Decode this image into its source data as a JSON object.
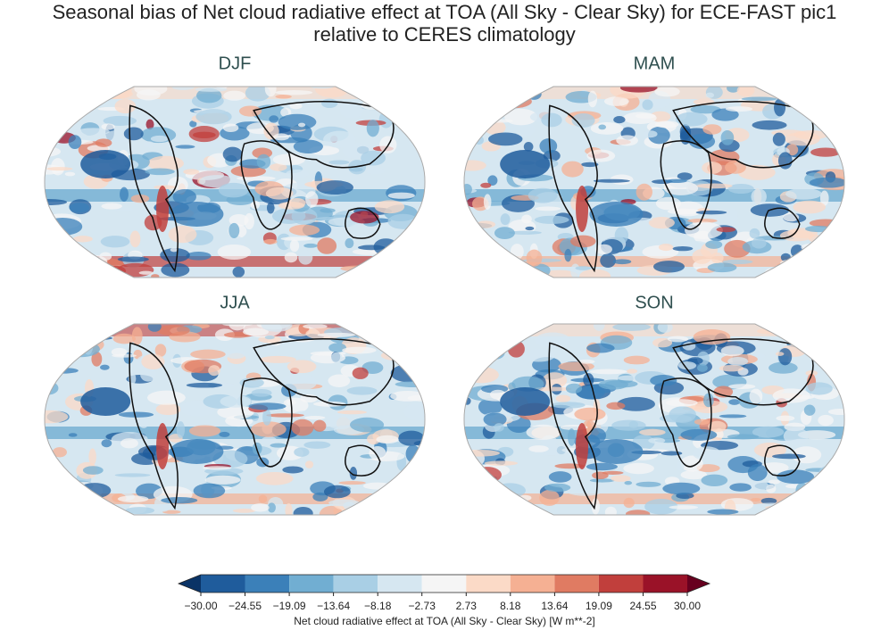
{
  "title": "Seasonal bias of Net cloud radiative effect at TOA (All Sky - Clear Sky) for ECE-FAST pic1",
  "subtitle": "relative to CERES climatology",
  "panels": [
    {
      "title": "DJF"
    },
    {
      "title": "MAM"
    },
    {
      "title": "JJA"
    },
    {
      "title": "SON"
    }
  ],
  "colorbar": {
    "label": "Net cloud radiative effect at TOA (All Sky - Clear Sky) [W m**-2]",
    "lim": [
      -30,
      30
    ],
    "ticks": [
      {
        "value": -30,
        "label": "−30.00"
      },
      {
        "value": -24.55,
        "label": "−24.55"
      },
      {
        "value": -19.09,
        "label": "−19.09"
      },
      {
        "value": -13.64,
        "label": "−13.64"
      },
      {
        "value": -8.18,
        "label": "−8.18"
      },
      {
        "value": -2.73,
        "label": "−2.73"
      },
      {
        "value": 2.73,
        "label": "2.73"
      },
      {
        "value": 8.18,
        "label": "8.18"
      },
      {
        "value": 13.64,
        "label": "13.64"
      },
      {
        "value": 19.09,
        "label": "19.09"
      },
      {
        "value": 24.55,
        "label": "24.55"
      },
      {
        "value": 30,
        "label": "30.00"
      }
    ],
    "colors": [
      "#1f5c9c",
      "#3b80b9",
      "#71aed2",
      "#a9cfe5",
      "#d6e7f1",
      "#f5f5f5",
      "#fbdac7",
      "#f5b093",
      "#e07b62",
      "#c13f3c",
      "#9a1228"
    ],
    "under_color": "#0a3366",
    "over_color": "#67001f"
  }
}
